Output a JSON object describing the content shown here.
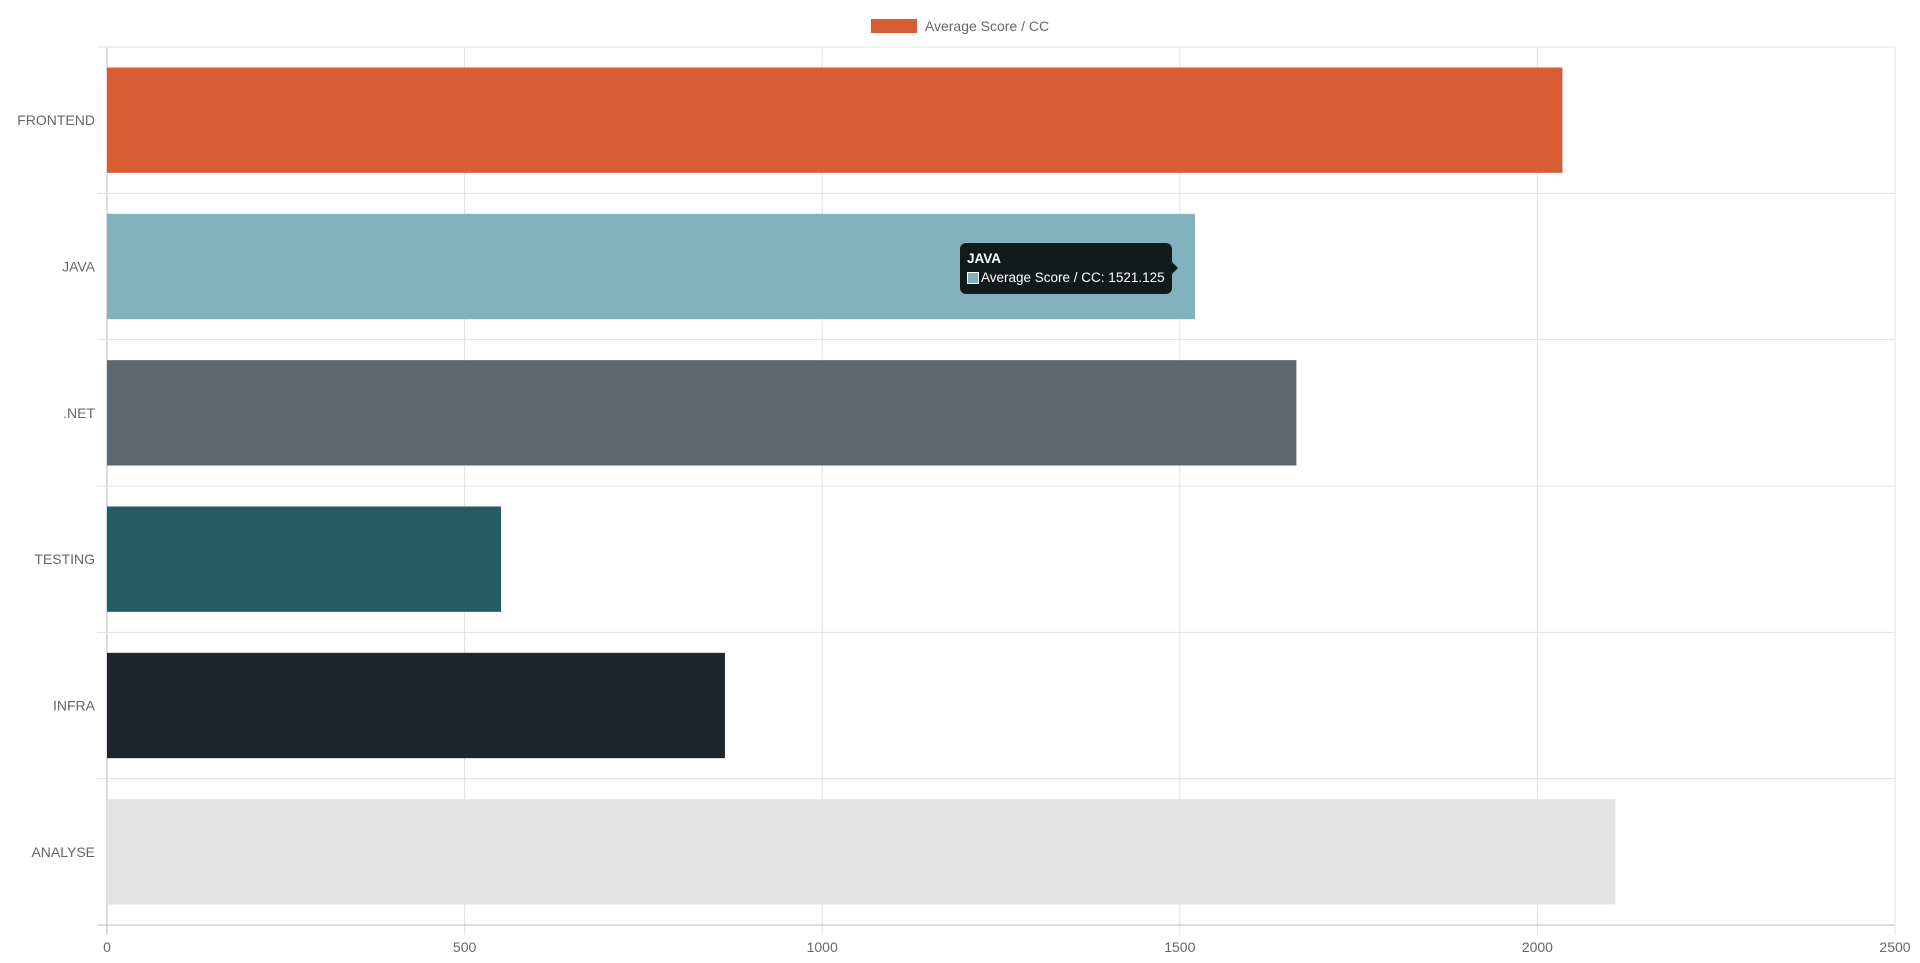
{
  "chart_data": {
    "type": "bar",
    "orientation": "horizontal",
    "categories": [
      "FRONTEND",
      "JAVA",
      ".NET",
      "TESTING",
      "INFRA",
      "ANALYSE"
    ],
    "series": [
      {
        "name": "Average Score / CC",
        "values": [
          2035,
          1521.125,
          1663,
          551,
          864,
          2109
        ]
      }
    ],
    "bar_colors": [
      "#d95d34",
      "#80b1bc",
      "#5c6770",
      "#245c63",
      "#20242b",
      "#e3e3e3"
    ],
    "xlim": [
      0,
      2500
    ],
    "x_ticks": [
      "0",
      "500",
      "1000",
      "1500",
      "2000",
      "2500"
    ],
    "grid": true,
    "legend": {
      "position": "top",
      "label": "Average Score / CC",
      "color": "#d95d34"
    },
    "tooltip": {
      "title": "JAVA",
      "label": "Average Score / CC: 1521.125",
      "swatch_color": "#80b1bc"
    }
  }
}
